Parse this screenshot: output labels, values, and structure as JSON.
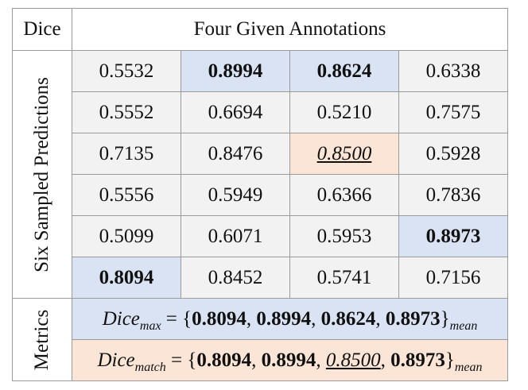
{
  "corner_label": "Dice",
  "column_header": "Four Given Annotations",
  "row_header": "Six Sampled Predictions",
  "metrics_label": "Metrics",
  "rows": [
    [
      {
        "v": "0.5532",
        "s": ""
      },
      {
        "v": "0.8994",
        "s": "max"
      },
      {
        "v": "0.8624",
        "s": "max"
      },
      {
        "v": "0.6338",
        "s": ""
      }
    ],
    [
      {
        "v": "0.5552",
        "s": ""
      },
      {
        "v": "0.6694",
        "s": ""
      },
      {
        "v": "0.5210",
        "s": ""
      },
      {
        "v": "0.7575",
        "s": ""
      }
    ],
    [
      {
        "v": "0.7135",
        "s": ""
      },
      {
        "v": "0.8476",
        "s": ""
      },
      {
        "v": "0.8500",
        "s": "match"
      },
      {
        "v": "0.5928",
        "s": ""
      }
    ],
    [
      {
        "v": "0.5556",
        "s": ""
      },
      {
        "v": "0.5949",
        "s": ""
      },
      {
        "v": "0.6366",
        "s": ""
      },
      {
        "v": "0.7836",
        "s": ""
      }
    ],
    [
      {
        "v": "0.5099",
        "s": ""
      },
      {
        "v": "0.6071",
        "s": ""
      },
      {
        "v": "0.5953",
        "s": ""
      },
      {
        "v": "0.8973",
        "s": "max"
      }
    ],
    [
      {
        "v": "0.8094",
        "s": "max"
      },
      {
        "v": "0.8452",
        "s": ""
      },
      {
        "v": "0.5741",
        "s": ""
      },
      {
        "v": "0.7156",
        "s": ""
      }
    ]
  ],
  "metrics": {
    "dice_max": {
      "name": "Dice",
      "sub": "max",
      "values": [
        "0.8094",
        "0.8994",
        "0.8624",
        "0.8973"
      ],
      "agg": "mean"
    },
    "dice_match": {
      "name": "Dice",
      "sub": "match",
      "values": [
        "0.8094",
        "0.8994",
        "0.8500",
        "0.8973"
      ],
      "underlined_value": "0.8500",
      "agg": "mean"
    }
  },
  "colors": {
    "max_highlight": "#dae3f3",
    "match_highlight": "#fbe5d6",
    "cell_background": "#f2f2f2",
    "border": "#9a9a9a"
  }
}
